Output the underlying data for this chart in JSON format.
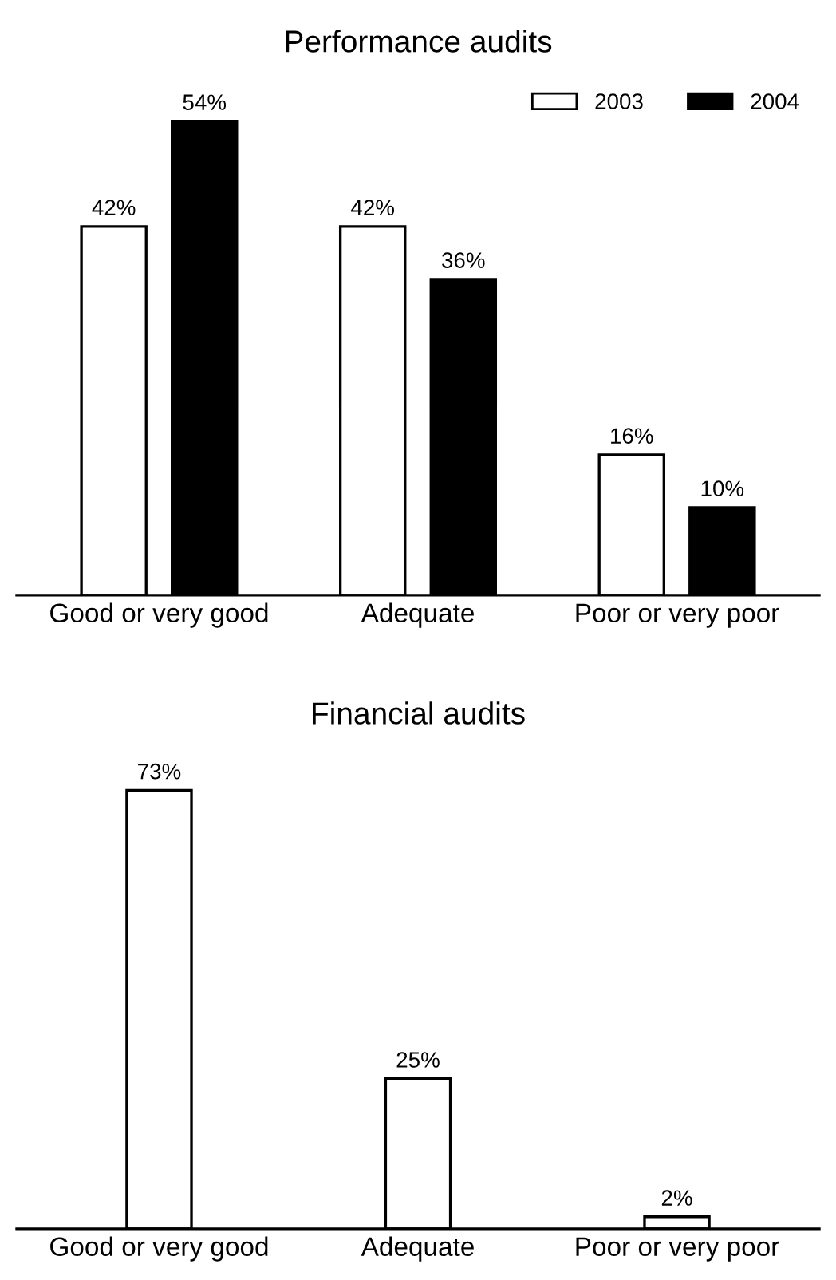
{
  "chart_data": [
    {
      "type": "bar",
      "title": "Performance audits",
      "categories": [
        "Good or very good",
        "Adequate",
        "Poor or very poor"
      ],
      "series": [
        {
          "name": "2003",
          "color": "#ffffff",
          "values": [
            42,
            42,
            16
          ],
          "value_labels": [
            "42%",
            "42%",
            "16%"
          ]
        },
        {
          "name": "2004",
          "color": "#000000",
          "values": [
            54,
            36,
            10
          ],
          "value_labels": [
            "54%",
            "36%",
            "10%"
          ]
        }
      ],
      "legend": "top right"
    },
    {
      "type": "bar",
      "title": "Financial audits",
      "categories": [
        "Good or very good",
        "Adequate",
        "Poor or very poor"
      ],
      "series": [
        {
          "color": "#ffffff",
          "values": [
            73,
            25,
            2
          ],
          "value_labels": [
            "73%",
            "25%",
            "2%"
          ]
        }
      ]
    }
  ]
}
